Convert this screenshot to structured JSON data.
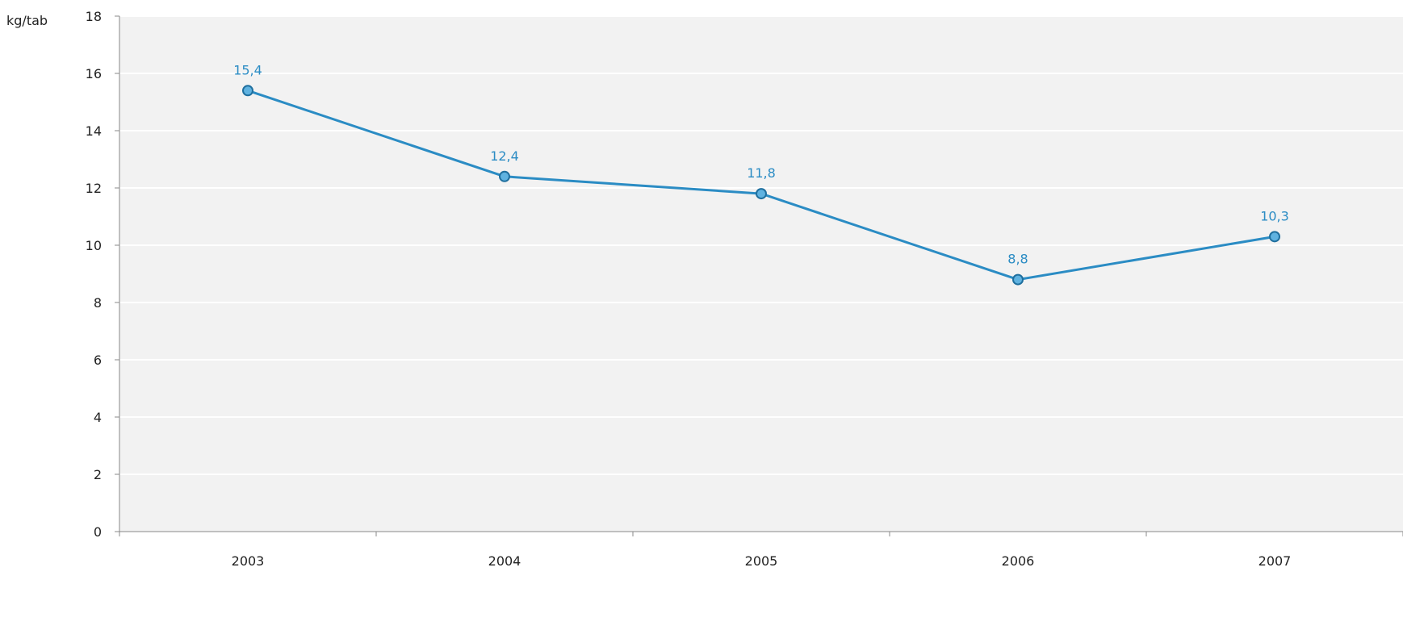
{
  "chart_data": {
    "type": "line",
    "title": "",
    "xlabel": "",
    "ylabel": "kg/tab",
    "categories": [
      "2003",
      "2004",
      "2005",
      "2006",
      "2007"
    ],
    "series": [
      {
        "values": [
          15.4,
          12.4,
          11.8,
          8.8,
          10.3
        ],
        "data_labels": [
          "15,4",
          "12,4",
          "11,8",
          "8,8",
          "10,3"
        ]
      }
    ],
    "ylim": [
      0,
      18
    ],
    "yticks": [
      0,
      2,
      4,
      6,
      8,
      10,
      12,
      14,
      16,
      18
    ],
    "grid": true,
    "legend": "none",
    "colors": {
      "line": "#2b8cc4",
      "label": "#2b8cc4",
      "plot_background": "#f2f2f2",
      "gridline": "#ffffff",
      "axis": "#888888",
      "tick_text": "#222222"
    }
  }
}
